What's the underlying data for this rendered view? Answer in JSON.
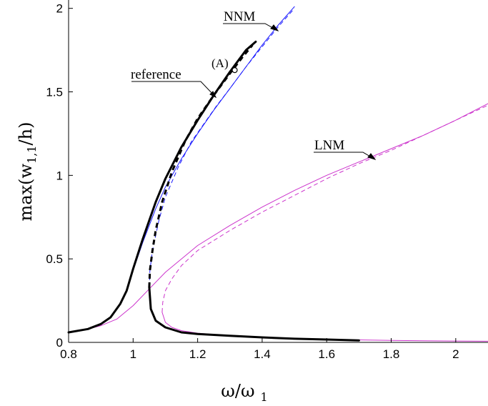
{
  "chart_data": {
    "type": "line",
    "xlabel": {
      "main": "ω/ω",
      "sub": "1"
    },
    "ylabel": {
      "prefix": "max(w",
      "sub": "1,1",
      "suffix": "/h)"
    },
    "xlim": [
      0.8,
      2.1
    ],
    "ylim": [
      0,
      2.05
    ],
    "xticks": [
      "0.8",
      "1",
      "1.2",
      "1.4",
      "1.6",
      "1.8",
      "2"
    ],
    "yticks": [
      "0",
      "0.5",
      "1",
      "1.5",
      "2"
    ],
    "grid": false,
    "annotations": [
      "NNM",
      "reference",
      "LNM",
      "(A)"
    ],
    "colors": {
      "reference": "#000000",
      "nnm": "#1a1aff",
      "lnm": "#cc33cc"
    },
    "series": [
      {
        "key": "reference",
        "style": "solid-thick",
        "color": "#000000",
        "x": [
          0.8,
          0.86,
          0.9,
          0.93,
          0.96,
          0.98,
          1.0,
          1.03,
          1.07,
          1.1,
          1.15,
          1.2,
          1.25,
          1.3,
          1.35,
          1.38
        ],
        "y": [
          0.06,
          0.08,
          0.11,
          0.15,
          0.23,
          0.31,
          0.44,
          0.62,
          0.84,
          0.98,
          1.17,
          1.33,
          1.48,
          1.62,
          1.75,
          1.8
        ]
      },
      {
        "key": "reference-stable-lower",
        "style": "solid-thick",
        "color": "#000000",
        "x": [
          1.05,
          1.055,
          1.07,
          1.1,
          1.15,
          1.2,
          1.3,
          1.4,
          1.5,
          1.6,
          1.7
        ],
        "y": [
          0.33,
          0.2,
          0.13,
          0.09,
          0.06,
          0.05,
          0.04,
          0.03,
          0.022,
          0.017,
          0.012
        ]
      },
      {
        "key": "reference-unstable",
        "style": "dashed-thick",
        "color": "#000000",
        "x": [
          1.05,
          1.052,
          1.06,
          1.07,
          1.09,
          1.12,
          1.16,
          1.2,
          1.25,
          1.3,
          1.34,
          1.37
        ],
        "y": [
          0.33,
          0.43,
          0.55,
          0.67,
          0.84,
          1.02,
          1.2,
          1.34,
          1.48,
          1.61,
          1.71,
          1.78
        ]
      },
      {
        "key": "nnm-stable",
        "style": "solid",
        "color": "#1a1aff",
        "x": [
          0.8,
          0.86,
          0.9,
          0.93,
          0.96,
          0.98,
          1.0,
          1.03,
          1.07,
          1.1,
          1.15,
          1.2,
          1.25,
          1.3,
          1.35,
          1.4,
          1.45,
          1.5
        ],
        "y": [
          0.06,
          0.08,
          0.11,
          0.15,
          0.23,
          0.31,
          0.43,
          0.6,
          0.8,
          0.93,
          1.1,
          1.25,
          1.39,
          1.52,
          1.65,
          1.78,
          1.9,
          2.01
        ]
      },
      {
        "key": "nnm-unstable",
        "style": "dashed",
        "color": "#1a1aff",
        "x": [
          1.05,
          1.052,
          1.06,
          1.08,
          1.1,
          1.14,
          1.18,
          1.22,
          1.26,
          1.3,
          1.35,
          1.4,
          1.45,
          1.5
        ],
        "y": [
          0.33,
          0.43,
          0.55,
          0.73,
          0.87,
          1.05,
          1.2,
          1.31,
          1.42,
          1.52,
          1.65,
          1.77,
          1.89,
          2.0
        ]
      },
      {
        "key": "nnm-lower",
        "style": "solid",
        "color": "#1a1aff",
        "x": [
          1.05,
          1.055,
          1.07,
          1.1,
          1.15,
          1.2,
          1.3,
          1.4,
          1.5,
          1.6,
          1.7
        ],
        "y": [
          0.33,
          0.2,
          0.13,
          0.09,
          0.06,
          0.05,
          0.04,
          0.03,
          0.022,
          0.017,
          0.012
        ]
      },
      {
        "key": "lnm-stable",
        "style": "solid",
        "color": "#cc33cc",
        "x": [
          0.8,
          0.86,
          0.9,
          0.95,
          1.0,
          1.05,
          1.1,
          1.2,
          1.3,
          1.4,
          1.5,
          1.6,
          1.7,
          1.8,
          1.9,
          2.0,
          2.1
        ],
        "y": [
          0.06,
          0.08,
          0.1,
          0.14,
          0.22,
          0.32,
          0.42,
          0.58,
          0.7,
          0.81,
          0.91,
          1.0,
          1.08,
          1.16,
          1.24,
          1.33,
          1.43
        ]
      },
      {
        "key": "lnm-unstable",
        "style": "dashed",
        "color": "#cc33cc",
        "x": [
          1.09,
          1.092,
          1.1,
          1.12,
          1.15,
          1.2,
          1.3,
          1.4,
          1.5,
          1.6,
          1.7,
          1.8,
          1.9,
          2.0,
          2.1
        ],
        "y": [
          0.18,
          0.24,
          0.31,
          0.38,
          0.46,
          0.55,
          0.67,
          0.78,
          0.88,
          0.98,
          1.07,
          1.15,
          1.24,
          1.33,
          1.42
        ]
      },
      {
        "key": "lnm-lower",
        "style": "solid",
        "color": "#cc33cc",
        "x": [
          1.09,
          1.1,
          1.12,
          1.15,
          1.2,
          1.3,
          1.4,
          1.5,
          1.6,
          1.7,
          1.8,
          1.9,
          2.0,
          2.1
        ],
        "y": [
          0.18,
          0.12,
          0.09,
          0.07,
          0.055,
          0.04,
          0.03,
          0.024,
          0.019,
          0.015,
          0.012,
          0.01,
          0.008,
          0.007
        ]
      }
    ],
    "point_A": {
      "x": 1.315,
      "y": 1.63
    }
  }
}
